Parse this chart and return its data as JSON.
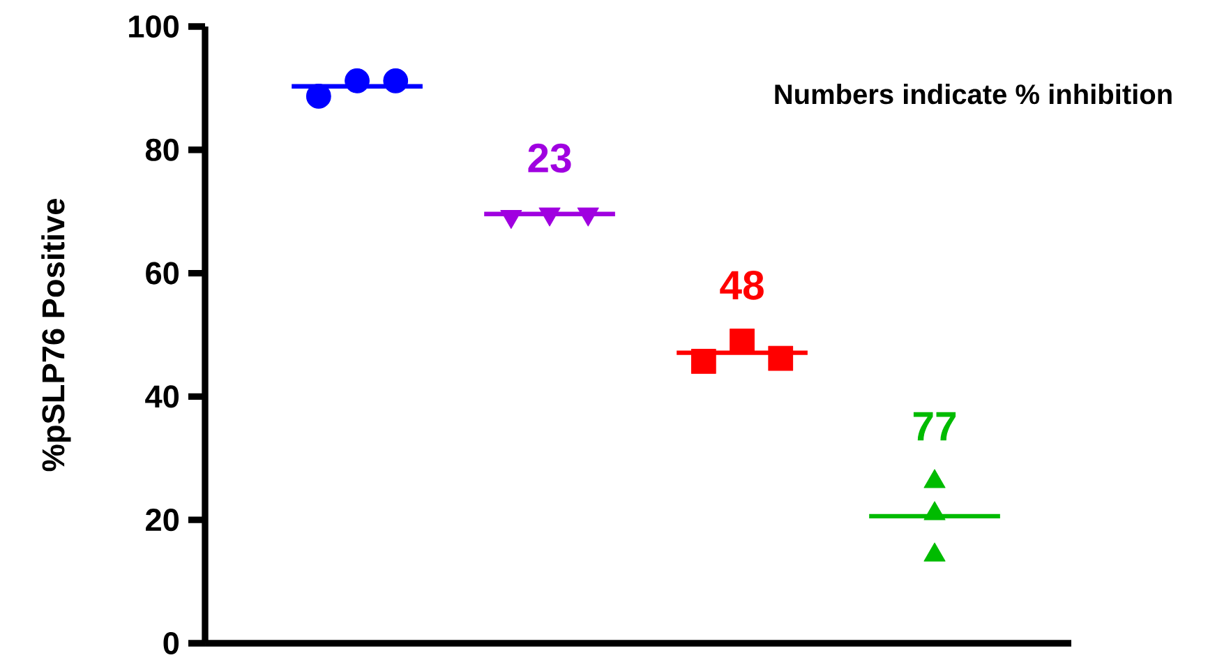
{
  "chart_data": {
    "type": "scatter",
    "ylabel": "%pSLP76 Positive",
    "categories": [
      null,
      null,
      null,
      null
    ],
    "ylim": [
      0,
      100
    ],
    "yticks": [
      0,
      20,
      40,
      60,
      80,
      100
    ],
    "series": [
      {
        "type": "box",
        "colors": [
          "#0000ff",
          "#a000e0",
          "#ff0000",
          "#00bb00"
        ],
        "boxes": [
          {
            "low": 90.3,
            "q1": 90.3,
            "median": 90.3,
            "q3": 90.3,
            "high": 90.3
          },
          {
            "low": 69.6,
            "q1": 69.6,
            "median": 69.6,
            "q3": 69.6,
            "high": 69.6
          },
          {
            "low": 47.1,
            "q1": 47.1,
            "median": 47.1,
            "q3": 47.1,
            "high": 47.1
          },
          {
            "low": 20.6,
            "q1": 20.6,
            "median": 20.6,
            "q3": 20.6,
            "high": 20.6
          }
        ],
        "value_labels": [
          null,
          "23",
          "48",
          "77"
        ]
      },
      {
        "color": "#0000ff",
        "marker": "circle",
        "values": [
          88.7,
          null,
          null,
          null
        ]
      },
      {
        "color": "#0000ff",
        "marker": "circle",
        "values": [
          91.2,
          null,
          null,
          null
        ]
      },
      {
        "color": "#0000ff",
        "marker": "circle",
        "values": [
          91.2,
          null,
          null,
          null
        ]
      },
      {
        "color": "#a000e0",
        "marker": "triangle down",
        "values": [
          null,
          69.2,
          null,
          null
        ]
      },
      {
        "color": "#a000e0",
        "marker": "triangle down",
        "values": [
          null,
          69.6,
          null,
          null
        ]
      },
      {
        "color": "#a000e0",
        "marker": "triangle down",
        "values": [
          null,
          69.6,
          null,
          null
        ]
      },
      {
        "color": "#ff0000",
        "marker": "square",
        "values": [
          null,
          null,
          45.7,
          null
        ]
      },
      {
        "color": "#ff0000",
        "marker": "square",
        "values": [
          null,
          null,
          49.0,
          null
        ]
      },
      {
        "color": "#ff0000",
        "marker": "square",
        "values": [
          null,
          null,
          46.2,
          null
        ]
      },
      {
        "color": "#00bb00",
        "marker": "triangle",
        "values": [
          null,
          null,
          null,
          26.2
        ]
      },
      {
        "color": "#00bb00",
        "marker": "triangle",
        "values": [
          null,
          null,
          null,
          21.0
        ]
      },
      {
        "color": "#00bb00",
        "marker": "triangle",
        "values": [
          null,
          null,
          null,
          14.3
        ]
      }
    ],
    "annotations": [
      "Numbers indicate % inhibition"
    ]
  }
}
